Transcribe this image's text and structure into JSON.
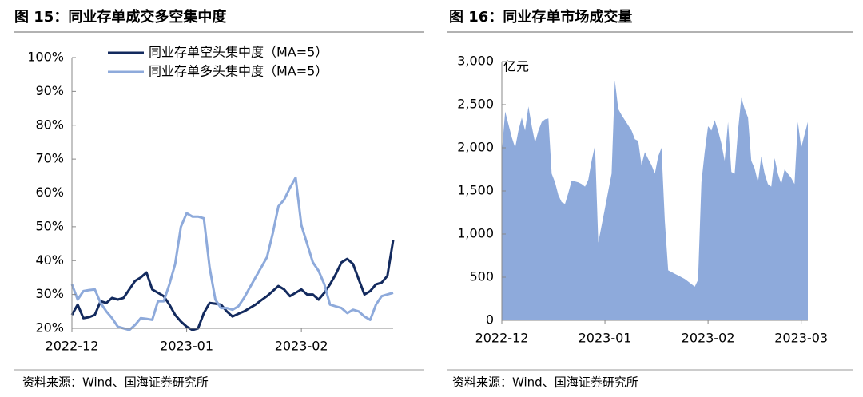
{
  "chart_data": [
    {
      "type": "line",
      "title": "图 15：同业存单成交多空集中度",
      "source": "资料来源：Wind、国海证券研究所",
      "categories": [
        "2022-12",
        null,
        null,
        null,
        null,
        null,
        null,
        null,
        null,
        null,
        null,
        null,
        null,
        null,
        null,
        null,
        null,
        null,
        null,
        null,
        "2023-01",
        null,
        null,
        null,
        null,
        null,
        null,
        null,
        null,
        null,
        null,
        null,
        null,
        null,
        null,
        null,
        null,
        null,
        null,
        null,
        "2023-02",
        null,
        null,
        null,
        null,
        null,
        null,
        null,
        null,
        null,
        null,
        null,
        null,
        null,
        null,
        null,
        null
      ],
      "series": [
        {
          "name": "同业存单空头集中度（MA=5）",
          "color": "#132a5e",
          "values": [
            24,
            27,
            23,
            23.3,
            24,
            28,
            27.5,
            29,
            28.5,
            29,
            31.5,
            34,
            35,
            36.5,
            31.5,
            30.5,
            29.5,
            27,
            24,
            22,
            20.5,
            19.5,
            20,
            24.5,
            27.5,
            27.3,
            27,
            25,
            23.5,
            24.3,
            25,
            26,
            27,
            28.3,
            29.5,
            31,
            32.5,
            31.5,
            29.5,
            30.5,
            31.5,
            30,
            30,
            28.5,
            30.5,
            33,
            36,
            39.5,
            40.5,
            39,
            34.5,
            30,
            31,
            33,
            33.5,
            35.5,
            46
          ]
        },
        {
          "name": "同业存单多头集中度（MA=5）",
          "color": "#8eaadb",
          "values": [
            33,
            28.5,
            31,
            31.3,
            31.5,
            27.5,
            25,
            23,
            20.5,
            20,
            19.5,
            21,
            23,
            22.8,
            22.5,
            28,
            28,
            33,
            39,
            50,
            54,
            53,
            53,
            52.5,
            38,
            28.5,
            26,
            26,
            25.5,
            26.5,
            29,
            32,
            35,
            38,
            41,
            48,
            56,
            58,
            61.5,
            64.5,
            50.5,
            45,
            39.5,
            37,
            33,
            27,
            26.5,
            26,
            24.5,
            25.5,
            25,
            23.5,
            22.5,
            27,
            29.5,
            30,
            30.5
          ]
        }
      ],
      "ylim": [
        20,
        100
      ],
      "yticks": [
        {
          "value": 20,
          "label": "20%"
        },
        {
          "value": 30,
          "label": "30%"
        },
        {
          "value": 40,
          "label": "40%"
        },
        {
          "value": 50,
          "label": "50%"
        },
        {
          "value": 60,
          "label": "60%"
        },
        {
          "value": 70,
          "label": "70%"
        },
        {
          "value": 80,
          "label": "80%"
        },
        {
          "value": 90,
          "label": "90%"
        },
        {
          "value": 100,
          "label": "100%"
        }
      ],
      "legend": "top-left"
    },
    {
      "type": "area",
      "title": "图 16：同业存单市场成交量",
      "source": "资料来源：Wind、国海证券研究所",
      "y_label": "亿元",
      "categories": [
        "2022-12",
        null,
        null,
        null,
        null,
        null,
        null,
        null,
        null,
        null,
        null,
        null,
        null,
        null,
        null,
        null,
        null,
        null,
        null,
        null,
        null,
        null,
        null,
        null,
        null,
        null,
        null,
        null,
        null,
        null,
        null,
        "2023-01",
        null,
        null,
        null,
        null,
        null,
        null,
        null,
        null,
        null,
        null,
        null,
        null,
        null,
        null,
        null,
        null,
        null,
        null,
        null,
        null,
        null,
        null,
        null,
        null,
        null,
        null,
        null,
        null,
        null,
        null,
        "2023-02",
        null,
        null,
        null,
        null,
        null,
        null,
        null,
        null,
        null,
        null,
        null,
        null,
        null,
        null,
        null,
        null,
        null,
        null,
        null,
        null,
        null,
        null,
        null,
        null,
        null,
        null,
        null,
        "2023-03",
        null,
        null
      ],
      "color": "#8eaadb",
      "values": [
        1950,
        2420,
        2270,
        2120,
        2000,
        2200,
        2350,
        2200,
        2480,
        2250,
        2060,
        2200,
        2300,
        2330,
        2340,
        1700,
        1600,
        1450,
        1370,
        1350,
        1480,
        1620,
        1610,
        1600,
        1580,
        1550,
        1630,
        1850,
        2030,
        900,
        1100,
        1300,
        1500,
        1700,
        2780,
        2450,
        2380,
        2320,
        2260,
        2200,
        2100,
        2080,
        1800,
        1950,
        1870,
        1800,
        1700,
        1900,
        2000,
        1150,
        580,
        560,
        540,
        520,
        500,
        480,
        450,
        420,
        390,
        470,
        1600,
        1950,
        2250,
        2200,
        2320,
        2200,
        2050,
        1850,
        2300,
        1720,
        1700,
        2200,
        2580,
        2450,
        2350,
        1850,
        1760,
        1600,
        1900,
        1700,
        1580,
        1550,
        1880,
        1700,
        1580,
        1750,
        1700,
        1650,
        1580,
        2300,
        2000,
        2150,
        2300
      ],
      "ylim": [
        0,
        3000
      ],
      "yticks": [
        0,
        500,
        {
          "value": 1000,
          "label": "1,000"
        },
        {
          "value": 1500,
          "label": "1,500"
        },
        {
          "value": 2000,
          "label": "2,000"
        },
        {
          "value": 2500,
          "label": "2,500"
        },
        {
          "value": 3000,
          "label": "3,000"
        }
      ]
    }
  ]
}
